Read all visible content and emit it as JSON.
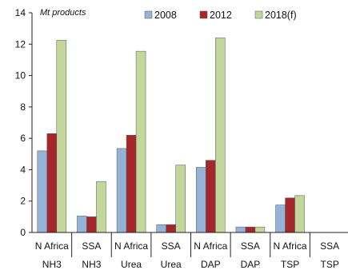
{
  "chart_data": {
    "type": "bar",
    "ylabel": "Mt products",
    "ylim": [
      0,
      14
    ],
    "yticks": [
      "0",
      "2",
      "4",
      "6",
      "8",
      "10",
      "12",
      "14"
    ],
    "grid": false,
    "legend_position": "top-right",
    "categories": [
      {
        "region": "N Africa",
        "product": "NH3"
      },
      {
        "region": "SSA",
        "product": "NH3"
      },
      {
        "region": "N Africa",
        "product": "Urea"
      },
      {
        "region": "SSA",
        "product": "Urea"
      },
      {
        "region": "N Africa",
        "product": "DAP"
      },
      {
        "region": "SSA",
        "product": "DAP"
      },
      {
        "region": "N Africa",
        "product": "TSP"
      },
      {
        "region": "SSA",
        "product": "TSP"
      }
    ],
    "series": [
      {
        "name": "2008",
        "color": "#95B3D7",
        "values": [
          5.2,
          1.05,
          5.35,
          0.5,
          4.15,
          0.35,
          1.75,
          0
        ]
      },
      {
        "name": "2012",
        "color": "#A5262B",
        "values": [
          6.3,
          1.0,
          6.2,
          0.5,
          4.6,
          0.35,
          2.2,
          0
        ]
      },
      {
        "name": "2018(f)",
        "color": "#C3D69B",
        "values": [
          12.25,
          3.25,
          11.55,
          4.3,
          12.4,
          0.35,
          2.35,
          0
        ]
      }
    ]
  }
}
